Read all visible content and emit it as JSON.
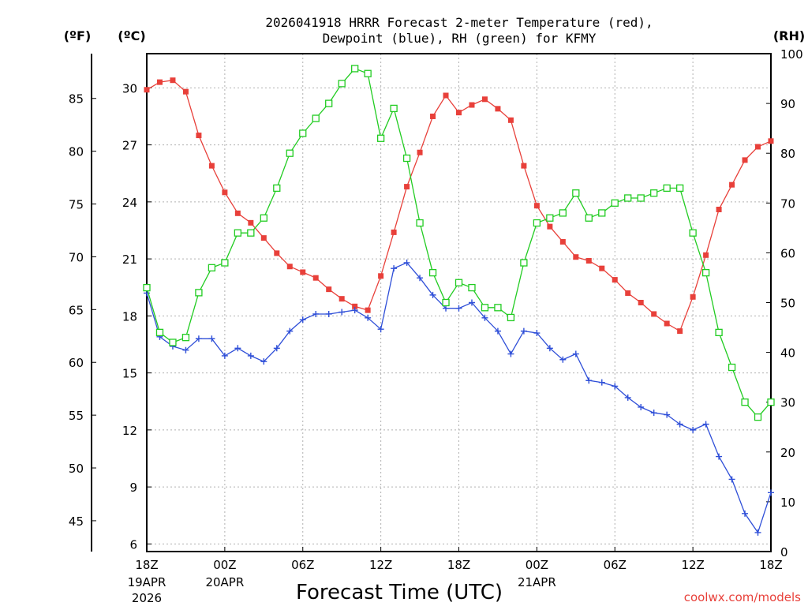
{
  "chart_data": {
    "type": "line",
    "title_line1": "2026041918 HRRR Forecast 2-meter Temperature (red),",
    "title_line2": "Dewpoint (blue), RH (green) for KFMY",
    "xlabel": "Forecast Time (UTC)",
    "credit": "coolwx.com/models",
    "unit_f": "(ºF)",
    "unit_c": "(ºC)",
    "unit_rh": "(RH)",
    "colors": {
      "temp": "#e8403a",
      "dew": "#2f4fd8",
      "rh": "#22cc22",
      "grid": "#b0b0b0"
    },
    "x_range_hours": [
      0,
      48
    ],
    "c_range": [
      5.6,
      31.8
    ],
    "rh_range": [
      0,
      100
    ],
    "x_ticks": [
      {
        "h": 0,
        "label": "18Z",
        "sub1": "19APR",
        "sub2": "2026"
      },
      {
        "h": 6,
        "label": "00Z",
        "sub1": "20APR",
        "sub2": ""
      },
      {
        "h": 12,
        "label": "06Z",
        "sub1": "",
        "sub2": ""
      },
      {
        "h": 18,
        "label": "12Z",
        "sub1": "",
        "sub2": ""
      },
      {
        "h": 24,
        "label": "18Z",
        "sub1": "",
        "sub2": ""
      },
      {
        "h": 30,
        "label": "00Z",
        "sub1": "21APR",
        "sub2": ""
      },
      {
        "h": 36,
        "label": "06Z",
        "sub1": "",
        "sub2": ""
      },
      {
        "h": 42,
        "label": "12Z",
        "sub1": "",
        "sub2": ""
      },
      {
        "h": 48,
        "label": "18Z",
        "sub1": "",
        "sub2": ""
      }
    ],
    "c_ticks": [
      "6",
      "9",
      "12",
      "15",
      "18",
      "21",
      "24",
      "27",
      "30"
    ],
    "f_ticks": [
      "45",
      "50",
      "55",
      "60",
      "65",
      "70",
      "75",
      "80",
      "85"
    ],
    "rh_ticks": [
      "0",
      "10",
      "20",
      "30",
      "40",
      "50",
      "60",
      "70",
      "80",
      "90",
      "100"
    ],
    "series": [
      {
        "name": "2-meter Temperature (°C)",
        "key": "temp",
        "marker": "filled-square",
        "values": [
          29.9,
          30.3,
          30.4,
          29.8,
          27.5,
          25.9,
          24.5,
          23.4,
          22.9,
          22.1,
          21.3,
          20.6,
          20.3,
          20.0,
          19.4,
          18.9,
          18.5,
          18.3,
          20.1,
          22.4,
          24.8,
          26.6,
          28.5,
          29.6,
          28.7,
          29.1,
          29.4,
          28.9,
          28.3,
          25.9,
          23.8,
          22.7,
          21.9,
          21.1,
          20.9,
          20.5,
          19.9,
          19.2,
          18.7,
          18.1,
          17.6,
          17.2,
          19.0,
          21.2,
          23.6,
          24.9,
          26.2,
          26.9,
          27.2
        ]
      },
      {
        "name": "Dewpoint (°C)",
        "key": "dew",
        "marker": "plus",
        "values": [
          19.2,
          16.9,
          16.4,
          16.2,
          16.8,
          16.8,
          15.9,
          16.3,
          15.9,
          15.6,
          16.3,
          17.2,
          17.8,
          18.1,
          18.1,
          18.2,
          18.3,
          17.9,
          17.3,
          20.5,
          20.8,
          20.0,
          19.1,
          18.4,
          18.4,
          18.7,
          17.9,
          17.2,
          16.0,
          17.2,
          17.1,
          16.3,
          15.7,
          16.0,
          14.6,
          14.5,
          14.3,
          13.7,
          13.2,
          12.9,
          12.8,
          12.3,
          12.0,
          12.3,
          10.6,
          9.4,
          7.6,
          6.6,
          8.7
        ]
      },
      {
        "name": "Relative Humidity (%)",
        "key": "rh",
        "marker": "open-square",
        "values": [
          53,
          44,
          42,
          43,
          52,
          57,
          58,
          64,
          64,
          67,
          73,
          80,
          84,
          87,
          90,
          94,
          97,
          96,
          83,
          89,
          79,
          66,
          56,
          50,
          54,
          53,
          49,
          49,
          47,
          58,
          66,
          67,
          68,
          72,
          67,
          68,
          70,
          71,
          71,
          72,
          73,
          73,
          64,
          56,
          44,
          37,
          30,
          27,
          30
        ]
      }
    ]
  }
}
